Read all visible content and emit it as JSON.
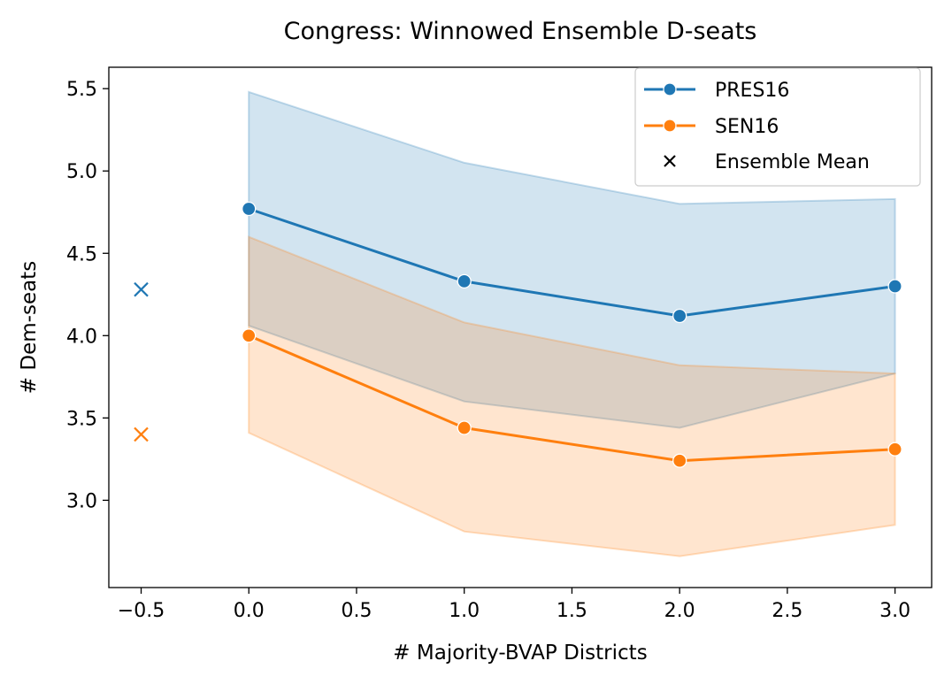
{
  "chart_data": {
    "type": "line",
    "title": "Congress: Winnowed Ensemble D-seats",
    "xlabel": "# Majority-BVAP Districts",
    "ylabel": "# Dem-seats",
    "xlim": [
      -0.65,
      3.17
    ],
    "ylim": [
      2.47,
      5.63
    ],
    "xticks": [
      -0.5,
      0.0,
      0.5,
      1.0,
      1.5,
      2.0,
      2.5,
      3.0
    ],
    "xtick_labels": [
      "−0.5",
      "0.0",
      "0.5",
      "1.0",
      "1.5",
      "2.0",
      "2.5",
      "3.0"
    ],
    "yticks": [
      3.0,
      3.5,
      4.0,
      4.5,
      5.0,
      5.5
    ],
    "ytick_labels": [
      "3.0",
      "3.5",
      "4.0",
      "4.5",
      "5.0",
      "5.5"
    ],
    "grid": false,
    "legend_position": "top-right",
    "series": [
      {
        "name": "PRES16",
        "color": "#1f77b4",
        "x": [
          0,
          1,
          2,
          3
        ],
        "y": [
          4.77,
          4.33,
          4.12,
          4.3
        ],
        "band_upper": [
          5.48,
          5.05,
          4.8,
          4.83
        ],
        "band_lower": [
          4.06,
          3.6,
          3.44,
          3.77
        ]
      },
      {
        "name": "SEN16",
        "color": "#ff7f0e",
        "x": [
          0,
          1,
          2,
          3
        ],
        "y": [
          4.0,
          3.44,
          3.24,
          3.31
        ],
        "band_upper": [
          4.6,
          4.08,
          3.82,
          3.77
        ],
        "band_lower": [
          3.41,
          2.81,
          2.66,
          2.85
        ]
      }
    ],
    "ensemble_mean": {
      "name": "Ensemble Mean",
      "points": [
        {
          "x": -0.5,
          "y": 4.28,
          "color": "#1f77b4"
        },
        {
          "x": -0.5,
          "y": 3.4,
          "color": "#ff7f0e"
        }
      ]
    }
  }
}
